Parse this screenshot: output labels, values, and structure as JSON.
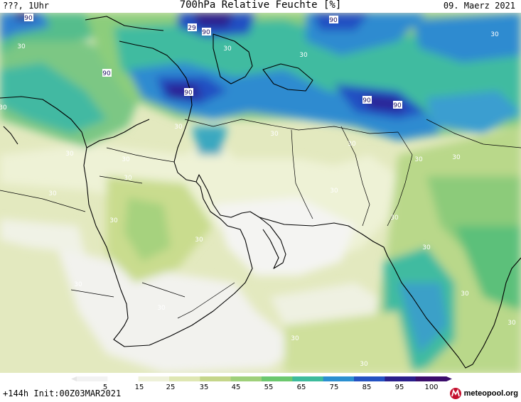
{
  "header": {
    "left": "???, 1Uhr",
    "title": "700hPa Relative Feuchte [%]",
    "date": "09. Maerz 2021"
  },
  "footer": {
    "init": "+144h Init:00Z03MAR2021",
    "logo": "meteopool.org"
  },
  "legend": {
    "ticks": [
      "5",
      "15",
      "25",
      "35",
      "45",
      "55",
      "65",
      "75",
      "85",
      "95",
      "100"
    ]
  },
  "contour_labels": [
    {
      "text": "90"
    },
    {
      "text": "29"
    },
    {
      "text": "90"
    },
    {
      "text": "90"
    },
    {
      "text": "30"
    },
    {
      "text": "30"
    },
    {
      "text": "90"
    },
    {
      "text": "90"
    },
    {
      "text": "90"
    },
    {
      "text": "90"
    },
    {
      "text": "30"
    },
    {
      "text": "30"
    },
    {
      "text": "30"
    },
    {
      "text": "30"
    },
    {
      "text": "30"
    },
    {
      "text": "30"
    },
    {
      "text": "30"
    },
    {
      "text": "30"
    },
    {
      "text": "30"
    },
    {
      "text": "30"
    },
    {
      "text": "30"
    },
    {
      "text": "30"
    },
    {
      "text": "30"
    },
    {
      "text": "30"
    },
    {
      "text": "30"
    },
    {
      "text": "30"
    },
    {
      "text": "30"
    },
    {
      "text": "30"
    },
    {
      "text": "30"
    },
    {
      "text": "30"
    },
    {
      "text": "30"
    },
    {
      "text": "30"
    },
    {
      "text": "30"
    }
  ],
  "colors": {
    "scale": [
      "#f2f2f2",
      "#ffffff",
      "#eef1d9",
      "#dfe7b3",
      "#c5d68a",
      "#9fd07a",
      "#6cc86e",
      "#3dbb9c",
      "#2b8fd0",
      "#2452c2",
      "#2a1f8c",
      "#3b0d6b"
    ]
  }
}
